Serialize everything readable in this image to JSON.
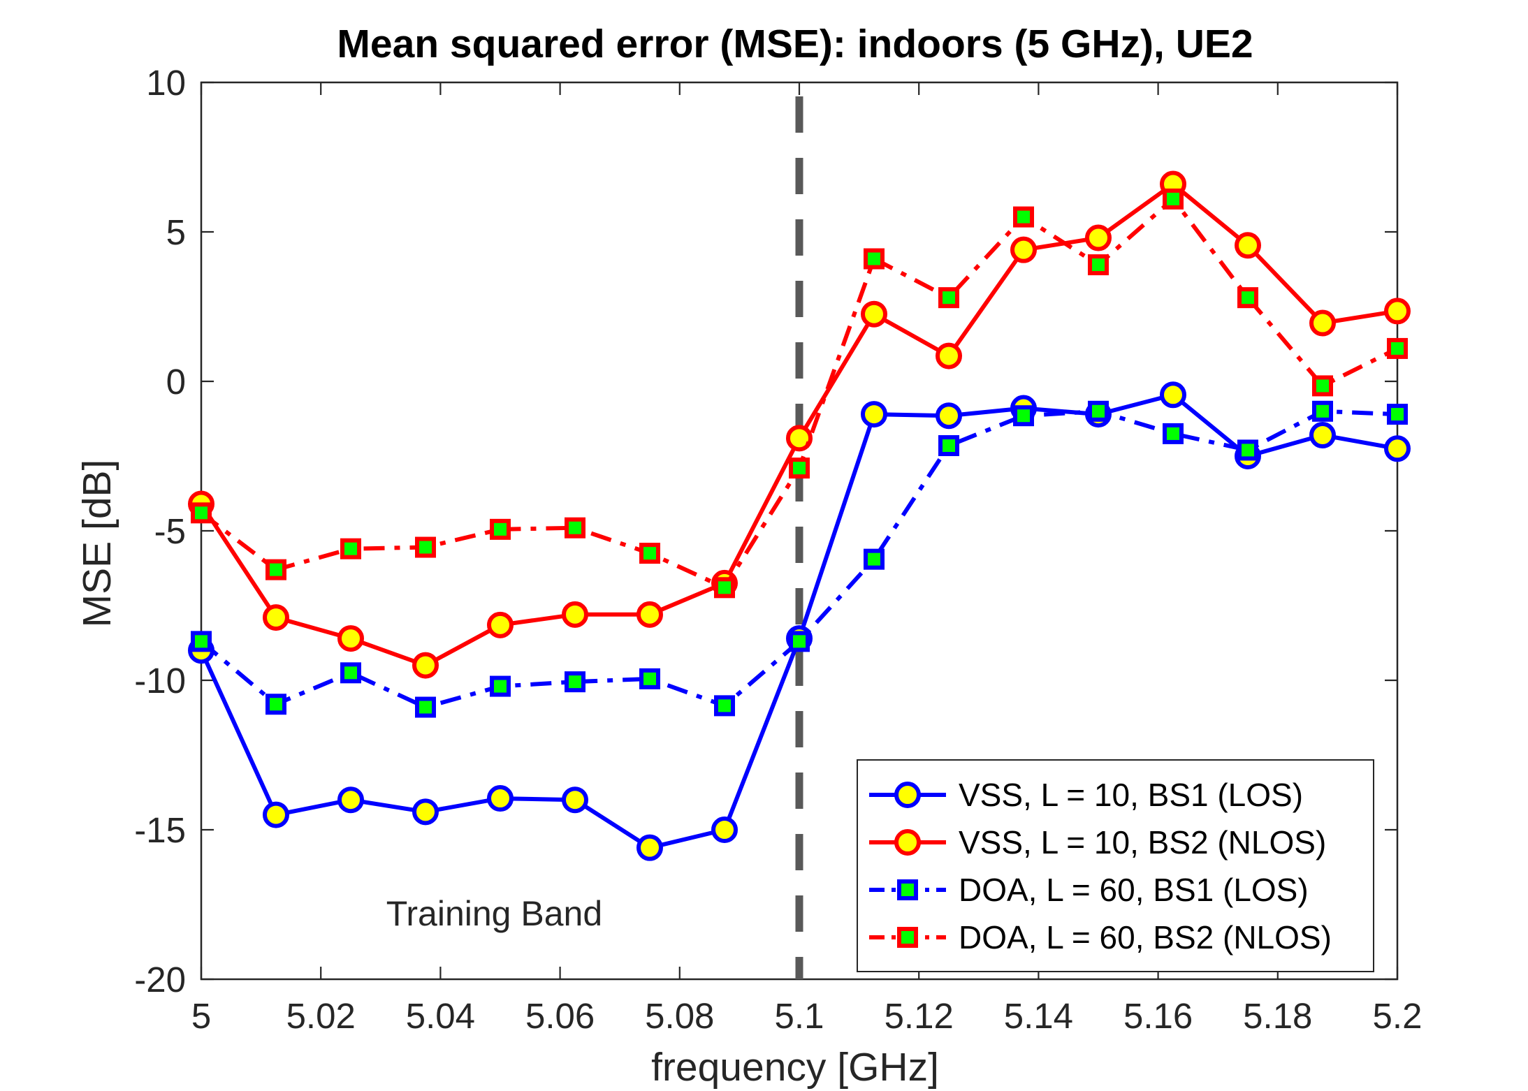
{
  "chart_data": {
    "type": "line",
    "title": "Mean squared error (MSE): indoors (5 GHz), UE2",
    "xlabel": "frequency [GHz]",
    "ylabel": "MSE [dB]",
    "xlim": [
      5,
      5.2
    ],
    "ylim": [
      -20,
      10
    ],
    "xticks": [
      "5",
      "5.02",
      "5.04",
      "5.06",
      "5.08",
      "5.1",
      "5.12",
      "5.14",
      "5.16",
      "5.18",
      "5.2"
    ],
    "yticks": [
      "10",
      "5",
      "0",
      "-5",
      "-10",
      "-15",
      "-20"
    ],
    "grid": false,
    "legend_position": "bottom-right",
    "x": [
      5.0,
      5.0125,
      5.025,
      5.0375,
      5.05,
      5.0625,
      5.075,
      5.0875,
      5.1,
      5.1125,
      5.125,
      5.1375,
      5.15,
      5.1625,
      5.175,
      5.1875,
      5.2
    ],
    "series": [
      {
        "name": "VSS, L = 10, BS1 (LOS)",
        "color": "#0000ff",
        "line_style": "solid",
        "marker": "circle",
        "marker_fill": "#ffff00",
        "values": [
          -9.0,
          -14.5,
          -14.0,
          -14.4,
          -13.95,
          -14.0,
          -15.6,
          -15.0,
          -8.6,
          -1.1,
          -1.15,
          -0.9,
          -1.1,
          -0.45,
          -2.5,
          -1.8,
          -2.25
        ]
      },
      {
        "name": "VSS, L = 10, BS2 (NLOS)",
        "color": "#ff0000",
        "line_style": "solid",
        "marker": "circle",
        "marker_fill": "#ffff00",
        "values": [
          -4.1,
          -7.9,
          -8.6,
          -9.5,
          -8.15,
          -7.8,
          -7.8,
          -6.75,
          -1.9,
          2.25,
          0.85,
          4.4,
          4.8,
          6.6,
          4.55,
          1.95,
          2.35
        ]
      },
      {
        "name": "DOA, L = 60, BS1 (LOS)",
        "color": "#0000ff",
        "line_style": "dashdot",
        "marker": "square",
        "marker_fill": "#00ff00",
        "values": [
          -8.7,
          -10.8,
          -9.75,
          -10.9,
          -10.2,
          -10.05,
          -9.95,
          -10.85,
          -8.7,
          -5.95,
          -2.15,
          -1.15,
          -1.0,
          -1.75,
          -2.3,
          -1.0,
          -1.1
        ]
      },
      {
        "name": "DOA, L = 60, BS2 (NLOS)",
        "color": "#ff0000",
        "line_style": "dashdot",
        "marker": "square",
        "marker_fill": "#00ff00",
        "values": [
          -4.4,
          -6.3,
          -5.6,
          -5.55,
          -4.95,
          -4.9,
          -5.75,
          -6.9,
          -2.9,
          4.1,
          2.8,
          5.5,
          3.9,
          6.1,
          2.8,
          -0.15,
          1.1
        ]
      }
    ],
    "reference_lines": [
      {
        "type": "vertical",
        "x": 5.1,
        "color": "#595959",
        "line_style": "dashed"
      }
    ],
    "annotations": [
      {
        "text": "Training Band",
        "x": 5.049,
        "y": -18.2
      }
    ]
  }
}
